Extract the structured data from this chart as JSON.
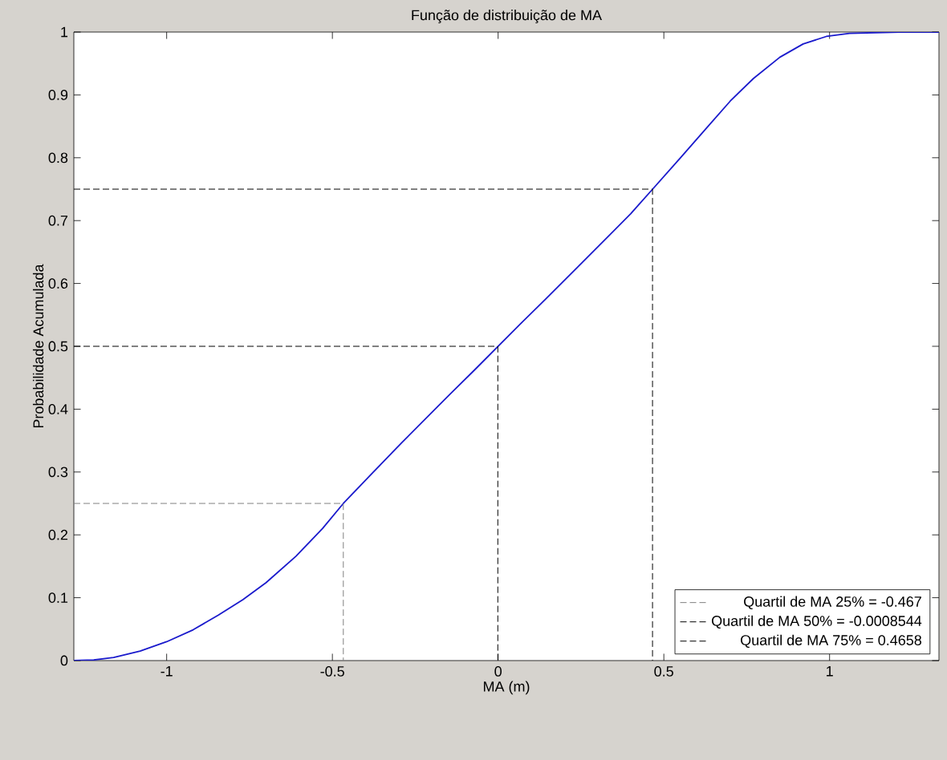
{
  "chart_data": {
    "type": "line",
    "title": "Função de distribuição de MA",
    "xlabel": "MA (m)",
    "ylabel": "Probabilidade Acumulada",
    "xlim": [
      -1.28,
      1.33
    ],
    "ylim": [
      0,
      1
    ],
    "xticks": [
      -1,
      -0.5,
      0,
      0.5,
      1
    ],
    "yticks": [
      0,
      0.1,
      0.2,
      0.3,
      0.4,
      0.5,
      0.6,
      0.7,
      0.8,
      0.9,
      1
    ],
    "legend": "bottom right",
    "grid": false,
    "marker": "none",
    "series": [
      {
        "color": "#1a1acc",
        "line_style": "solid",
        "x": [
          -1.28,
          -1.22,
          -1.16,
          -1.08,
          -1.0,
          -0.92,
          -0.845,
          -0.77,
          -0.7,
          -0.61,
          -0.53,
          -0.467,
          -0.38,
          -0.29,
          -0.145,
          -0.07,
          0,
          0.07,
          0.145,
          0.24,
          0.34,
          0.4,
          0.466,
          0.55,
          0.63,
          0.7,
          0.77,
          0.85,
          0.92,
          0.99,
          1.06,
          1.21,
          1.33
        ],
        "values": [
          0,
          0.001,
          0.005,
          0.015,
          0.03,
          0.049,
          0.072,
          0.097,
          0.124,
          0.166,
          0.21,
          0.25,
          0.298,
          0.347,
          0.424,
          0.463,
          0.5,
          0.537,
          0.576,
          0.626,
          0.679,
          0.711,
          0.75,
          0.8,
          0.848,
          0.89,
          0.926,
          0.96,
          0.981,
          0.993,
          0.998,
          1,
          1
        ]
      },
      {
        "name": "Quartil de MA 25% = -0.467",
        "color": "#808080",
        "line_style": "dashed",
        "x": [
          -1.28,
          -0.467,
          -0.467
        ],
        "values": [
          0.25,
          0.25,
          0
        ]
      },
      {
        "name": "Quartil de MA 50% = -0.0008544",
        "color": "#000000",
        "line_style": "dashed",
        "x": [
          -1.28,
          -0.0008544,
          -0.0008544
        ],
        "values": [
          0.5,
          0.5,
          0
        ]
      },
      {
        "name": "Quartil de MA 75% = 0.4658",
        "color": "#000000",
        "line_style": "dashed",
        "x": [
          -1.28,
          0.4658,
          0.4658
        ],
        "values": [
          0.75,
          0.75,
          0
        ]
      }
    ]
  }
}
